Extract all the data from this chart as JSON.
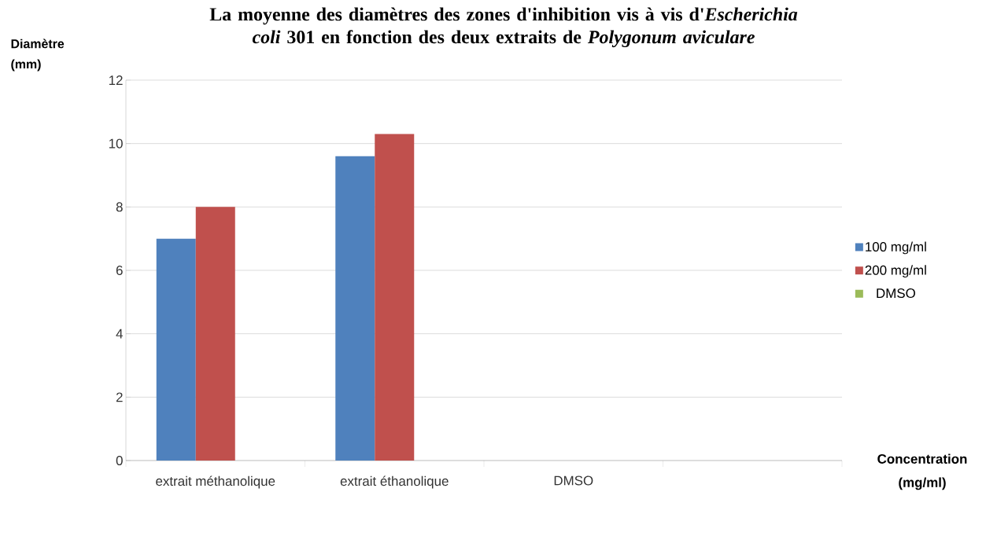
{
  "chart_data": {
    "type": "bar",
    "title": "La moyenne des diamètres des zones d'inhibition vis à vis d'*Escherichia coli* 301 en fonction des deux extraits de *Polygonum aviculare*",
    "xlabel": "Concentration (mg/ml)",
    "ylabel": "Diamètre (mm)",
    "categories": [
      "extrait méthanolique",
      "extrait éthanolique",
      "DMSO",
      null
    ],
    "series": [
      {
        "name": "100 mg/ml",
        "color": "#4f81bd",
        "values": [
          7,
          9.6,
          null,
          null
        ]
      },
      {
        "name": "200 mg/ml",
        "color": "#c0504d",
        "values": [
          8,
          10.3,
          null,
          null
        ]
      },
      {
        "name": "DMSO",
        "color": "#9bbb59",
        "values": [
          null,
          null,
          0,
          null
        ]
      }
    ],
    "ylim": [
      0,
      12
    ],
    "yticks": [
      0,
      2,
      4,
      6,
      8,
      10,
      12
    ],
    "grid": "y",
    "legend": "right"
  }
}
